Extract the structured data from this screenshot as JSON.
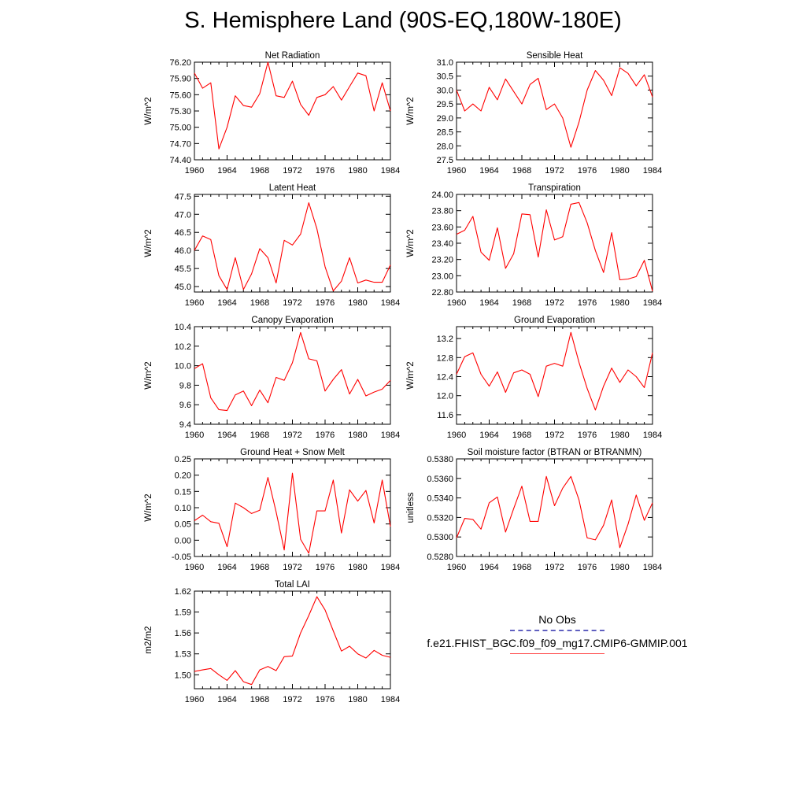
{
  "title": "S. Hemisphere Land (90S-EQ,180W-180E)",
  "legend": {
    "obs_label": "No Obs",
    "case_label": "f.e21.FHIST_BGC.f09_f09_mg17.CMIP6-GMMIP.001",
    "obs_color": "#6060c0",
    "case_color": "#ff0000"
  },
  "chart_data": [
    {
      "type": "line",
      "title": "Net Radiation",
      "ylabel": "W/m^2",
      "xlim": [
        1960,
        1984
      ],
      "ylim": [
        74.4,
        76.2
      ],
      "xticks": [
        "1960",
        "1964",
        "1968",
        "1972",
        "1976",
        "1980",
        "1984"
      ],
      "yticks": [
        "74.40",
        "74.70",
        "75.00",
        "75.30",
        "75.60",
        "75.90",
        "76.20"
      ],
      "x": [
        1960,
        1961,
        1962,
        1963,
        1964,
        1965,
        1966,
        1967,
        1968,
        1969,
        1970,
        1971,
        1972,
        1973,
        1974,
        1975,
        1976,
        1977,
        1978,
        1979,
        1980,
        1981,
        1982,
        1983,
        1984
      ],
      "series": [
        {
          "name": "f.e21.FHIST_BGC.f09_f09_mg17.CMIP6-GMMIP.001",
          "values": [
            76.0,
            75.72,
            75.82,
            74.6,
            75.0,
            75.58,
            75.4,
            75.37,
            75.62,
            76.2,
            75.58,
            75.55,
            75.85,
            75.42,
            75.22,
            75.55,
            75.6,
            75.75,
            75.5,
            75.75,
            76.0,
            75.95,
            75.3,
            75.82,
            75.3
          ]
        }
      ]
    },
    {
      "type": "line",
      "title": "Sensible Heat",
      "ylabel": "W/m^2",
      "xlim": [
        1960,
        1984
      ],
      "ylim": [
        27.5,
        31.0
      ],
      "xticks": [
        "1960",
        "1964",
        "1968",
        "1972",
        "1976",
        "1980",
        "1984"
      ],
      "yticks": [
        "27.5",
        "28.0",
        "28.5",
        "29.0",
        "29.5",
        "30.0",
        "30.5",
        "31.0"
      ],
      "x": [
        1960,
        1961,
        1962,
        1963,
        1964,
        1965,
        1966,
        1967,
        1968,
        1969,
        1970,
        1971,
        1972,
        1973,
        1974,
        1975,
        1976,
        1977,
        1978,
        1979,
        1980,
        1981,
        1982,
        1983,
        1984
      ],
      "series": [
        {
          "name": "f.e21.FHIST_BGC.f09_f09_mg17.CMIP6-GMMIP.001",
          "values": [
            30.0,
            29.25,
            29.5,
            29.25,
            30.1,
            29.65,
            30.4,
            29.95,
            29.5,
            30.2,
            30.42,
            29.3,
            29.5,
            29.0,
            27.95,
            28.85,
            30.0,
            30.7,
            30.35,
            29.8,
            30.8,
            30.6,
            30.15,
            30.55,
            29.75
          ]
        }
      ]
    },
    {
      "type": "line",
      "title": "Latent Heat",
      "ylabel": "W/m^2",
      "xlim": [
        1960,
        1984
      ],
      "ylim": [
        44.85,
        47.55
      ],
      "xticks": [
        "1960",
        "1964",
        "1968",
        "1972",
        "1976",
        "1980",
        "1984"
      ],
      "yticks": [
        "45.0",
        "45.5",
        "46.0",
        "46.5",
        "47.0",
        "47.5"
      ],
      "x": [
        1960,
        1961,
        1962,
        1963,
        1964,
        1965,
        1966,
        1967,
        1968,
        1969,
        1970,
        1971,
        1972,
        1973,
        1974,
        1975,
        1976,
        1977,
        1978,
        1979,
        1980,
        1981,
        1982,
        1983,
        1984
      ],
      "series": [
        {
          "name": "f.e21.FHIST_BGC.f09_f09_mg17.CMIP6-GMMIP.001",
          "values": [
            46.0,
            46.4,
            46.3,
            45.3,
            44.92,
            45.8,
            44.92,
            45.35,
            46.05,
            45.8,
            45.1,
            46.28,
            46.15,
            46.45,
            47.32,
            46.6,
            45.55,
            44.88,
            45.15,
            45.8,
            45.1,
            45.18,
            45.12,
            45.12,
            45.6
          ]
        }
      ]
    },
    {
      "type": "line",
      "title": "Transpiration",
      "ylabel": "W/m^2",
      "xlim": [
        1960,
        1984
      ],
      "ylim": [
        22.8,
        24.0
      ],
      "xticks": [
        "1960",
        "1964",
        "1968",
        "1972",
        "1976",
        "1980",
        "1984"
      ],
      "yticks": [
        "22.80",
        "23.00",
        "23.20",
        "23.40",
        "23.60",
        "23.80",
        "24.00"
      ],
      "x": [
        1960,
        1961,
        1962,
        1963,
        1964,
        1965,
        1966,
        1967,
        1968,
        1969,
        1970,
        1971,
        1972,
        1973,
        1974,
        1975,
        1976,
        1977,
        1978,
        1979,
        1980,
        1981,
        1982,
        1983,
        1984
      ],
      "series": [
        {
          "name": "f.e21.FHIST_BGC.f09_f09_mg17.CMIP6-GMMIP.001",
          "values": [
            23.51,
            23.56,
            23.73,
            23.29,
            23.19,
            23.59,
            23.09,
            23.27,
            23.76,
            23.75,
            23.23,
            23.81,
            23.44,
            23.48,
            23.88,
            23.9,
            23.65,
            23.31,
            23.04,
            23.53,
            22.95,
            22.96,
            22.99,
            23.19,
            22.81
          ]
        }
      ]
    },
    {
      "type": "line",
      "title": "Canopy Evaporation",
      "ylabel": "W/m^2",
      "xlim": [
        1960,
        1984
      ],
      "ylim": [
        9.4,
        10.4
      ],
      "xticks": [
        "1960",
        "1964",
        "1968",
        "1972",
        "1976",
        "1980",
        "1984"
      ],
      "yticks": [
        "9.4",
        "9.6",
        "9.8",
        "10.0",
        "10.2",
        "10.4"
      ],
      "x": [
        1960,
        1961,
        1962,
        1963,
        1964,
        1965,
        1966,
        1967,
        1968,
        1969,
        1970,
        1971,
        1972,
        1973,
        1974,
        1975,
        1976,
        1977,
        1978,
        1979,
        1980,
        1981,
        1982,
        1983,
        1984
      ],
      "series": [
        {
          "name": "f.e21.FHIST_BGC.f09_f09_mg17.CMIP6-GMMIP.001",
          "values": [
            9.97,
            10.02,
            9.67,
            9.55,
            9.54,
            9.7,
            9.74,
            9.59,
            9.75,
            9.62,
            9.88,
            9.85,
            10.03,
            10.34,
            10.07,
            10.05,
            9.74,
            9.86,
            9.96,
            9.71,
            9.86,
            9.69,
            9.73,
            9.76,
            9.85
          ]
        }
      ]
    },
    {
      "type": "line",
      "title": "Ground Evaporation",
      "ylabel": "W/m^2",
      "xlim": [
        1960,
        1984
      ],
      "ylim": [
        11.4,
        13.45
      ],
      "xticks": [
        "1960",
        "1964",
        "1968",
        "1972",
        "1976",
        "1980",
        "1984"
      ],
      "yticks": [
        "11.6",
        "12.0",
        "12.4",
        "12.8",
        "13.2"
      ],
      "x": [
        1960,
        1961,
        1962,
        1963,
        1964,
        1965,
        1966,
        1967,
        1968,
        1969,
        1970,
        1971,
        1972,
        1973,
        1974,
        1975,
        1976,
        1977,
        1978,
        1979,
        1980,
        1981,
        1982,
        1983,
        1984
      ],
      "series": [
        {
          "name": "f.e21.FHIST_BGC.f09_f09_mg17.CMIP6-GMMIP.001",
          "values": [
            12.45,
            12.82,
            12.9,
            12.45,
            12.2,
            12.5,
            12.07,
            12.48,
            12.54,
            12.45,
            11.98,
            12.62,
            12.68,
            12.62,
            13.33,
            12.7,
            12.15,
            11.7,
            12.2,
            12.58,
            12.28,
            12.54,
            12.4,
            12.17,
            12.9
          ]
        }
      ]
    },
    {
      "type": "line",
      "title": "Ground Heat + Snow Melt",
      "ylabel": "W/m^2",
      "xlim": [
        1960,
        1984
      ],
      "ylim": [
        -0.05,
        0.25
      ],
      "xticks": [
        "1960",
        "1964",
        "1968",
        "1972",
        "1976",
        "1980",
        "1984"
      ],
      "yticks": [
        "-0.05",
        "0.00",
        "0.05",
        "0.10",
        "0.15",
        "0.20",
        "0.25"
      ],
      "x": [
        1960,
        1961,
        1962,
        1963,
        1964,
        1965,
        1966,
        1967,
        1968,
        1969,
        1970,
        1971,
        1972,
        1973,
        1974,
        1975,
        1976,
        1977,
        1978,
        1979,
        1980,
        1981,
        1982,
        1983,
        1984
      ],
      "series": [
        {
          "name": "f.e21.FHIST_BGC.f09_f09_mg17.CMIP6-GMMIP.001",
          "values": [
            0.06,
            0.077,
            0.057,
            0.052,
            -0.02,
            0.114,
            0.1,
            0.082,
            0.092,
            0.193,
            0.087,
            -0.03,
            0.206,
            0.003,
            -0.04,
            0.09,
            0.09,
            0.185,
            0.022,
            0.155,
            0.12,
            0.153,
            0.053,
            0.185,
            0.042
          ]
        }
      ]
    },
    {
      "type": "line",
      "title": "Soil moisture factor (BTRAN or BTRANMN)",
      "ylabel": "unitless",
      "xlim": [
        1960,
        1984
      ],
      "ylim": [
        0.528,
        0.538
      ],
      "xticks": [
        "1960",
        "1964",
        "1968",
        "1972",
        "1976",
        "1980",
        "1984"
      ],
      "yticks": [
        "0.5280",
        "0.5300",
        "0.5320",
        "0.5340",
        "0.5360",
        "0.5380"
      ],
      "x": [
        1960,
        1961,
        1962,
        1963,
        1964,
        1965,
        1966,
        1967,
        1968,
        1969,
        1970,
        1971,
        1972,
        1973,
        1974,
        1975,
        1976,
        1977,
        1978,
        1979,
        1980,
        1981,
        1982,
        1983,
        1984
      ],
      "series": [
        {
          "name": "f.e21.FHIST_BGC.f09_f09_mg17.CMIP6-GMMIP.001",
          "values": [
            0.5299,
            0.5319,
            0.5318,
            0.5308,
            0.5335,
            0.5341,
            0.5305,
            0.5329,
            0.5352,
            0.5316,
            0.5316,
            0.5362,
            0.5332,
            0.535,
            0.5362,
            0.5338,
            0.5299,
            0.5297,
            0.5312,
            0.5338,
            0.5289,
            0.5313,
            0.5343,
            0.5317,
            0.5335
          ]
        }
      ]
    },
    {
      "type": "line",
      "title": "Total LAI",
      "ylabel": "m2/m2",
      "xlim": [
        1960,
        1984
      ],
      "ylim": [
        1.48,
        1.62
      ],
      "xticks": [
        "1960",
        "1964",
        "1968",
        "1972",
        "1976",
        "1980",
        "1984"
      ],
      "yticks": [
        "1.50",
        "1.53",
        "1.56",
        "1.59",
        "1.62"
      ],
      "x": [
        1960,
        1961,
        1962,
        1963,
        1964,
        1965,
        1966,
        1967,
        1968,
        1969,
        1970,
        1971,
        1972,
        1973,
        1974,
        1975,
        1976,
        1977,
        1978,
        1979,
        1980,
        1981,
        1982,
        1983,
        1984
      ],
      "series": [
        {
          "name": "f.e21.FHIST_BGC.f09_f09_mg17.CMIP6-GMMIP.001",
          "values": [
            1.505,
            1.507,
            1.509,
            1.5,
            1.492,
            1.506,
            1.49,
            1.486,
            1.507,
            1.512,
            1.506,
            1.526,
            1.527,
            1.56,
            1.585,
            1.612,
            1.593,
            1.563,
            1.534,
            1.541,
            1.53,
            1.524,
            1.535,
            1.528,
            1.525
          ]
        }
      ]
    }
  ]
}
